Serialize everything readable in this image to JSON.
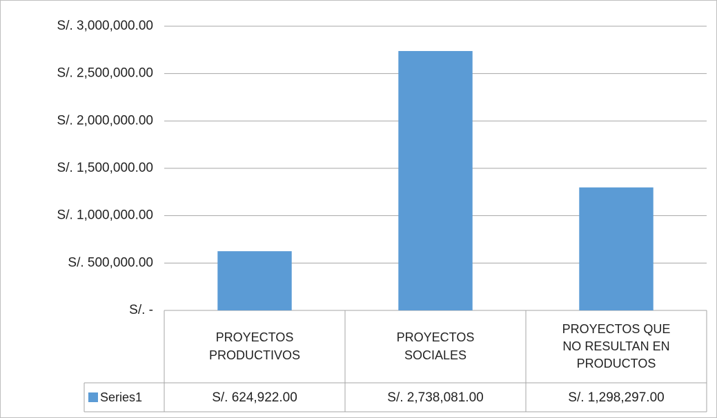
{
  "chart_data": {
    "type": "bar",
    "categories": [
      "PROYECTOS PRODUCTIVOS",
      "PROYECTOS SOCIALES",
      "PROYECTOS QUE NO RESULTAN EN PRODUCTOS"
    ],
    "series": [
      {
        "name": "Series1",
        "color": "#5b9bd5",
        "values": [
          624922,
          2738081,
          1298297
        ],
        "value_labels": [
          "S/. 624,922.00",
          "S/. 2,738,081.00",
          "S/. 1,298,297.00"
        ]
      }
    ],
    "ylim": [
      0,
      3000000
    ],
    "yticks": [
      {
        "value": 0,
        "label": "S/. -"
      },
      {
        "value": 500000,
        "label": "S/. 500,000.00"
      },
      {
        "value": 1000000,
        "label": "S/. 1,000,000.00"
      },
      {
        "value": 1500000,
        "label": "S/. 1,500,000.00"
      },
      {
        "value": 2000000,
        "label": "S/. 2,000,000.00"
      },
      {
        "value": 2500000,
        "label": "S/. 2,500,000.00"
      },
      {
        "value": 3000000,
        "label": "S/. 3,000,000.00"
      }
    ],
    "grid": true,
    "data_table": true
  }
}
